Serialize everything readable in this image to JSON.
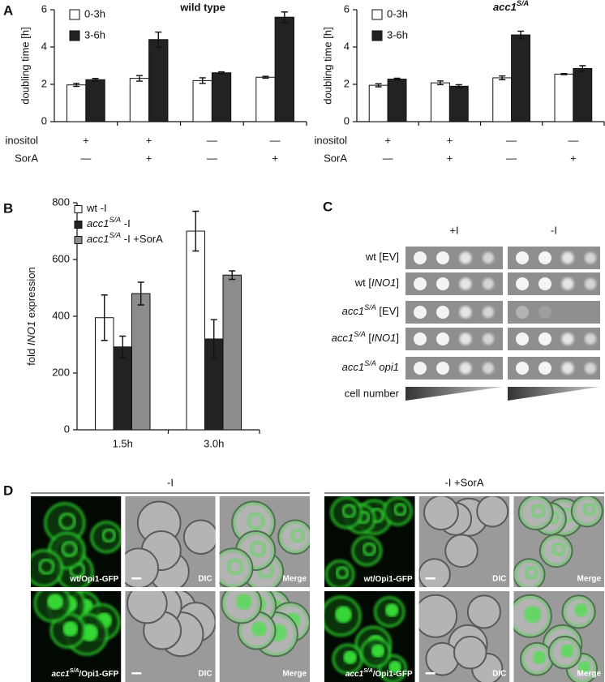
{
  "panel_labels": [
    "A",
    "B",
    "C",
    "D"
  ],
  "chart_data": [
    {
      "type": "bar",
      "title": "wild type",
      "ylabel": "doubling time [h]",
      "categories": [
        null,
        null,
        null,
        null
      ],
      "condition_rows": [
        {
          "label": "inositol",
          "marks": [
            "+",
            "+",
            "—",
            "—"
          ]
        },
        {
          "label": "SorA",
          "marks": [
            "—",
            "+",
            "—",
            "+"
          ]
        }
      ],
      "series": [
        {
          "name": "0-3h",
          "color": "#ffffff",
          "values": [
            1.97,
            2.32,
            2.2,
            2.38
          ],
          "errors": [
            0.08,
            0.15,
            0.15,
            0.05
          ]
        },
        {
          "name": "3-6h",
          "color": "#222222",
          "values": [
            2.25,
            4.4,
            2.62,
            5.6
          ],
          "errors": [
            0.07,
            0.4,
            0.05,
            0.28
          ]
        }
      ],
      "ylim": [
        0,
        6
      ],
      "yticks": [
        0,
        2,
        4,
        6
      ]
    },
    {
      "type": "bar",
      "title": [
        {
          "text": "acc1",
          "italic": true
        },
        {
          "text": "S/A",
          "italic": true,
          "sup": true
        }
      ],
      "ylabel": "doubling time [h]",
      "categories": [
        null,
        null,
        null,
        null
      ],
      "condition_rows": [
        {
          "label": "inositol",
          "marks": [
            "+",
            "+",
            "—",
            "—"
          ]
        },
        {
          "label": "SorA",
          "marks": [
            "—",
            "+",
            "—",
            "+"
          ]
        }
      ],
      "series": [
        {
          "name": "0-3h",
          "color": "#ffffff",
          "values": [
            1.95,
            2.08,
            2.35,
            2.55
          ],
          "errors": [
            0.08,
            0.1,
            0.1,
            0.03
          ]
        },
        {
          "name": "3-6h",
          "color": "#222222",
          "values": [
            2.28,
            1.9,
            4.65,
            2.85
          ],
          "errors": [
            0.05,
            0.08,
            0.2,
            0.15
          ]
        }
      ],
      "ylim": [
        0,
        6
      ],
      "yticks": [
        0,
        2,
        4,
        6
      ]
    },
    {
      "type": "bar",
      "ylabel": [
        "fold ",
        {
          "text": "INO1",
          "italic": true
        },
        " expression"
      ],
      "categories": [
        "1.5h",
        "3.0h"
      ],
      "series": [
        {
          "name": [
            "wt -I"
          ],
          "color": "#ffffff",
          "values": [
            395,
            700
          ],
          "errors": [
            80,
            70
          ]
        },
        {
          "name": [
            {
              "text": "acc1",
              "italic": true
            },
            {
              "text": "S/A",
              "italic": true,
              "sup": true
            },
            " -I"
          ],
          "color": "#222222",
          "values": [
            292,
            320
          ],
          "errors": [
            38,
            68
          ]
        },
        {
          "name": [
            {
              "text": "acc1",
              "italic": true
            },
            {
              "text": "S/A",
              "italic": true,
              "sup": true
            },
            " -I +SorA"
          ],
          "color": "#8c8c8c",
          "values": [
            480,
            545
          ],
          "errors": [
            40,
            15
          ]
        }
      ],
      "ylim": [
        0,
        800
      ],
      "yticks": [
        0,
        200,
        400,
        600,
        800
      ]
    }
  ],
  "spot_assay": {
    "columns": [
      "+I",
      "-I"
    ],
    "rows": [
      [
        "wt [EV]"
      ],
      [
        "wt [",
        {
          "text": "INO1",
          "italic": true
        },
        "]"
      ],
      [
        {
          "text": "acc1",
          "italic": true
        },
        {
          "text": "S/A",
          "italic": true,
          "sup": true
        },
        " [EV]"
      ],
      [
        {
          "text": "acc1",
          "italic": true
        },
        {
          "text": "S/A",
          "italic": true,
          "sup": true
        },
        " [",
        {
          "text": "INO1",
          "italic": true
        },
        "]"
      ],
      [
        {
          "text": "acc1",
          "italic": true
        },
        {
          "text": "S/A",
          "italic": true,
          "sup": true
        },
        {
          "text": " opi1",
          "italic": true
        }
      ]
    ],
    "gradient_label": "cell number"
  },
  "microscopy": {
    "conditions": [
      "-I",
      "-I +SorA"
    ],
    "row_labels": [
      [
        "wt/Opi1-GFP"
      ],
      [
        {
          "text": "acc1",
          "italic": true
        },
        {
          "text": "S/A",
          "italic": true,
          "sup": true
        },
        "/Opi1-GFP"
      ]
    ],
    "column_labels": [
      "DIC",
      "Merge"
    ]
  }
}
